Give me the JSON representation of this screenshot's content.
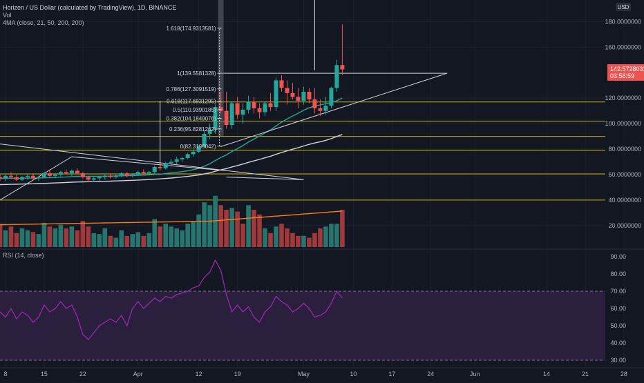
{
  "header": {
    "symbol_line": "Horizen / US Dollar (calculated by TradingView), 1D, BINANCE",
    "vol_label": "Vol",
    "ma_label": "4MA (close, 21, 50, 200, 200)",
    "currency_badge": "USD",
    "price_badge": "142.5728033",
    "countdown_badge": "03:58:59"
  },
  "colors": {
    "background": "#131722",
    "up": "#26a69a",
    "down": "#ef5350",
    "vol_up": "#26756f",
    "vol_down": "#a0393b",
    "ma21": "#26a69a",
    "ma50": "#d1d4dc",
    "vol_ma": "#f57c1f",
    "rsi_line": "#9c27b0",
    "rsi_band": "#2a1f3d",
    "hline": "#c9b400",
    "fib": "#d1d4dc",
    "text": "#b2b5be"
  },
  "chart_data": [
    {
      "type": "candlestick",
      "price_axis_ticks": [
        "180.0000000",
        "160.0000000",
        "120.0000000",
        "100.0000000",
        "80.0000000",
        "60.0000000",
        "40.0000000",
        "20.0000000"
      ],
      "y_range": [
        2,
        196
      ],
      "x_axis_ticks": [
        {
          "label": "8",
          "day": 0
        },
        {
          "label": "15",
          "day": 7
        },
        {
          "label": "22",
          "day": 14
        },
        {
          "label": "Apr",
          "day": 24
        },
        {
          "label": "12",
          "day": 35
        },
        {
          "label": "19",
          "day": 42
        },
        {
          "label": "May",
          "day": 54
        },
        {
          "label": "10",
          "day": 63
        },
        {
          "label": "17",
          "day": 70
        },
        {
          "label": "24",
          "day": 77
        },
        {
          "label": "Jun",
          "day": 85
        },
        {
          "label": "14",
          "day": 98
        },
        {
          "label": "21",
          "day": 105
        },
        {
          "label": "28",
          "day": 112
        }
      ],
      "candles": [
        [
          -1,
          58,
          60,
          55,
          57
        ],
        [
          0,
          57,
          60,
          55,
          59
        ],
        [
          1,
          59,
          62,
          57,
          58
        ],
        [
          2,
          58,
          60,
          55,
          56
        ],
        [
          3,
          56,
          59,
          55,
          58
        ],
        [
          4,
          58,
          60,
          56,
          59
        ],
        [
          5,
          59,
          61,
          56,
          57
        ],
        [
          6,
          57,
          59,
          55,
          58
        ],
        [
          7,
          58,
          62,
          57,
          61
        ],
        [
          8,
          61,
          63,
          58,
          59
        ],
        [
          9,
          59,
          61,
          57,
          60
        ],
        [
          10,
          60,
          63,
          58,
          62
        ],
        [
          11,
          62,
          64,
          60,
          61
        ],
        [
          12,
          61,
          64,
          59,
          63
        ],
        [
          13,
          63,
          65,
          60,
          61
        ],
        [
          14,
          61,
          62,
          57,
          58
        ],
        [
          15,
          58,
          59,
          54,
          56
        ],
        [
          16,
          56,
          58,
          54,
          57
        ],
        [
          17,
          57,
          59,
          55,
          58
        ],
        [
          18,
          58,
          60,
          56,
          59
        ],
        [
          19,
          59,
          61,
          57,
          58
        ],
        [
          20,
          58,
          60,
          57,
          59
        ],
        [
          21,
          59,
          62,
          58,
          61
        ],
        [
          22,
          61,
          62,
          58,
          59
        ],
        [
          23,
          59,
          61,
          58,
          60
        ],
        [
          24,
          60,
          63,
          59,
          62
        ],
        [
          25,
          62,
          64,
          60,
          61
        ],
        [
          26,
          61,
          63,
          60,
          62
        ],
        [
          27,
          62,
          67,
          61,
          66
        ],
        [
          28,
          66,
          68,
          63,
          65
        ],
        [
          29,
          65,
          70,
          64,
          69
        ],
        [
          30,
          69,
          72,
          67,
          70
        ],
        [
          31,
          70,
          74,
          68,
          72
        ],
        [
          32,
          72,
          74,
          70,
          73
        ],
        [
          33,
          73,
          77,
          72,
          76
        ],
        [
          34,
          76,
          80,
          74,
          78
        ],
        [
          35,
          78,
          83,
          77,
          82
        ],
        [
          36,
          82,
          95,
          81,
          92
        ],
        [
          37,
          92,
          100,
          88,
          95
        ],
        [
          38,
          95,
          115,
          92,
          113
        ],
        [
          39,
          113,
          125,
          108,
          110
        ],
        [
          40,
          110,
          125,
          96,
          99
        ],
        [
          41,
          99,
          118,
          96,
          116
        ],
        [
          42,
          116,
          121,
          104,
          107
        ],
        [
          43,
          107,
          116,
          100,
          111
        ],
        [
          44,
          111,
          122,
          108,
          117
        ],
        [
          45,
          117,
          121,
          108,
          112
        ],
        [
          46,
          112,
          116,
          104,
          109
        ],
        [
          47,
          109,
          118,
          106,
          116
        ],
        [
          48,
          116,
          124,
          110,
          113
        ],
        [
          49,
          113,
          136,
          110,
          134
        ],
        [
          50,
          134,
          138,
          125,
          128
        ],
        [
          51,
          128,
          134,
          115,
          124
        ],
        [
          52,
          124,
          132,
          119,
          121
        ],
        [
          53,
          121,
          128,
          112,
          118
        ],
        [
          54,
          118,
          129,
          115,
          125
        ],
        [
          55,
          125,
          128,
          116,
          119
        ],
        [
          56,
          119,
          128,
          108,
          112
        ],
        [
          57,
          112,
          119,
          106,
          110
        ],
        [
          58,
          110,
          121,
          107,
          114
        ],
        [
          59,
          114,
          129,
          112,
          128
        ],
        [
          60,
          128,
          150,
          125,
          146
        ],
        [
          61,
          146,
          178,
          138,
          142.57
        ]
      ],
      "volume": [
        [
          -1,
          25,
          0
        ],
        [
          0,
          18,
          1
        ],
        [
          1,
          22,
          0
        ],
        [
          2,
          15,
          0
        ],
        [
          3,
          20,
          1
        ],
        [
          4,
          18,
          1
        ],
        [
          5,
          16,
          0
        ],
        [
          6,
          14,
          1
        ],
        [
          7,
          26,
          1
        ],
        [
          8,
          22,
          0
        ],
        [
          9,
          20,
          1
        ],
        [
          10,
          24,
          1
        ],
        [
          11,
          20,
          0
        ],
        [
          12,
          22,
          1
        ],
        [
          13,
          18,
          0
        ],
        [
          14,
          28,
          0
        ],
        [
          15,
          22,
          0
        ],
        [
          16,
          15,
          1
        ],
        [
          17,
          14,
          1
        ],
        [
          18,
          20,
          1
        ],
        [
          19,
          12,
          0
        ],
        [
          20,
          10,
          1
        ],
        [
          21,
          18,
          1
        ],
        [
          22,
          12,
          0
        ],
        [
          23,
          14,
          1
        ],
        [
          24,
          16,
          1
        ],
        [
          25,
          12,
          0
        ],
        [
          26,
          15,
          1
        ],
        [
          27,
          30,
          1
        ],
        [
          28,
          22,
          0
        ],
        [
          29,
          25,
          1
        ],
        [
          30,
          22,
          1
        ],
        [
          31,
          20,
          1
        ],
        [
          32,
          18,
          1
        ],
        [
          33,
          25,
          1
        ],
        [
          34,
          28,
          1
        ],
        [
          35,
          35,
          1
        ],
        [
          36,
          48,
          1
        ],
        [
          37,
          45,
          1
        ],
        [
          38,
          55,
          1
        ],
        [
          39,
          45,
          0
        ],
        [
          40,
          40,
          0
        ],
        [
          41,
          42,
          1
        ],
        [
          42,
          38,
          0
        ],
        [
          43,
          25,
          0
        ],
        [
          44,
          45,
          1
        ],
        [
          45,
          40,
          0
        ],
        [
          46,
          35,
          0
        ],
        [
          47,
          20,
          1
        ],
        [
          48,
          15,
          0
        ],
        [
          49,
          22,
          1
        ],
        [
          50,
          25,
          0
        ],
        [
          51,
          20,
          0
        ],
        [
          52,
          15,
          0
        ],
        [
          53,
          12,
          0
        ],
        [
          54,
          12,
          1
        ],
        [
          55,
          10,
          0
        ],
        [
          56,
          15,
          0
        ],
        [
          57,
          20,
          0
        ],
        [
          58,
          22,
          1
        ],
        [
          59,
          25,
          1
        ],
        [
          60,
          25,
          1
        ],
        [
          61,
          40,
          0
        ]
      ],
      "horizontal_levels": [
        40,
        60.5,
        79,
        90,
        102,
        117
      ],
      "fib_levels": [
        {
          "label": "0(82.3199042)",
          "value": 82.3199042
        },
        {
          "label": "0.236(95.8281262)",
          "value": 95.8281262
        },
        {
          "label": "0.382(104.1849076)",
          "value": 104.1849076
        },
        {
          "label": "0.5(110.9390185)",
          "value": 110.9390185
        },
        {
          "label": "0.618(117.6931295)",
          "value": 117.6931295
        },
        {
          "label": "0.786(127.3091519)",
          "value": 127.3091519
        },
        {
          "label": "1(139.5581328)",
          "value": 139.5581328
        },
        {
          "label": "1.618(174.9313581)",
          "value": 174.9313581
        }
      ]
    },
    {
      "type": "line",
      "name": "RSI (14, close)",
      "y_ticks": [
        "90.00",
        "80.00",
        "70.00",
        "60.00",
        "50.00",
        "40.00",
        "30.00"
      ],
      "y_range": [
        26,
        94
      ],
      "bands": [
        30,
        70
      ],
      "values": [
        [
          -1,
          58
        ],
        [
          0,
          55
        ],
        [
          1,
          60
        ],
        [
          2,
          54
        ],
        [
          3,
          58
        ],
        [
          4,
          56
        ],
        [
          5,
          52
        ],
        [
          6,
          55
        ],
        [
          7,
          62
        ],
        [
          8,
          58
        ],
        [
          9,
          60
        ],
        [
          10,
          64
        ],
        [
          11,
          60
        ],
        [
          12,
          62
        ],
        [
          13,
          55
        ],
        [
          14,
          45
        ],
        [
          15,
          42
        ],
        [
          16,
          46
        ],
        [
          17,
          50
        ],
        [
          18,
          52
        ],
        [
          19,
          54
        ],
        [
          20,
          52
        ],
        [
          21,
          56
        ],
        [
          22,
          50
        ],
        [
          23,
          60
        ],
        [
          24,
          64
        ],
        [
          25,
          60
        ],
        [
          26,
          63
        ],
        [
          27,
          66
        ],
        [
          28,
          64
        ],
        [
          29,
          67
        ],
        [
          30,
          66
        ],
        [
          31,
          68
        ],
        [
          32,
          69
        ],
        [
          33,
          70
        ],
        [
          34,
          72
        ],
        [
          35,
          73
        ],
        [
          36,
          78
        ],
        [
          37,
          81
        ],
        [
          38,
          88
        ],
        [
          39,
          82
        ],
        [
          40,
          68
        ],
        [
          41,
          58
        ],
        [
          42,
          62
        ],
        [
          43,
          58
        ],
        [
          44,
          61
        ],
        [
          45,
          55
        ],
        [
          46,
          52
        ],
        [
          47,
          58
        ],
        [
          48,
          61
        ],
        [
          49,
          67
        ],
        [
          50,
          64
        ],
        [
          51,
          62
        ],
        [
          52,
          58
        ],
        [
          53,
          60
        ],
        [
          54,
          63
        ],
        [
          55,
          60
        ],
        [
          56,
          55
        ],
        [
          57,
          56
        ],
        [
          58,
          58
        ],
        [
          59,
          63
        ],
        [
          60,
          70
        ],
        [
          61,
          66
        ]
      ]
    }
  ]
}
